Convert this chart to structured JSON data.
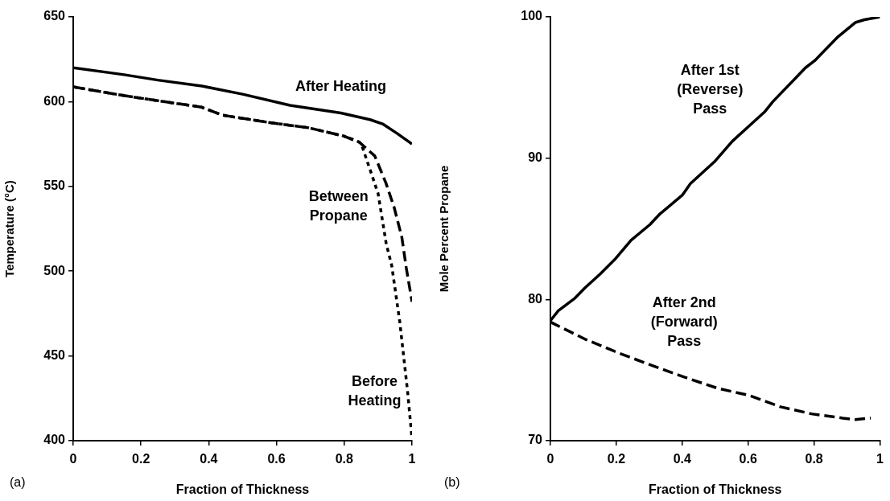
{
  "chart_data": [
    {
      "type": "line",
      "xlabel": "Fraction of Thickness",
      "ylabel": "Temperature (°C)",
      "xlim": [
        0,
        1
      ],
      "ylim": [
        400,
        650
      ],
      "xticks": [
        0,
        0.2,
        0.4,
        0.6,
        0.8,
        1
      ],
      "yticks": [
        400,
        450,
        500,
        550,
        600,
        650
      ],
      "grid": false,
      "legend": false,
      "marker": "none",
      "series": [
        {
          "color": "#000000",
          "line_style": "solid",
          "x": [
            0,
            0.15,
            0.25,
            0.38,
            0.5,
            0.64,
            0.79,
            0.876,
            0.915,
            0.955,
            1
          ],
          "values": [
            620,
            615.9,
            612.7,
            609.2,
            604.4,
            597.8,
            593.3,
            589.4,
            586.7,
            581.4,
            575
          ]
        },
        {
          "color": "#000000",
          "line_style": "dashed",
          "x": [
            0,
            0.149,
            0.251,
            0.378,
            0.441,
            0.575,
            0.694,
            0.797,
            0.844,
            0.89,
            0.923,
            0.947,
            0.97,
            0.983,
            1
          ],
          "values": [
            608.7,
            603.6,
            600.5,
            596.8,
            592,
            587.8,
            584.6,
            579.8,
            576.2,
            568,
            552,
            537.8,
            520,
            502,
            482
          ]
        },
        {
          "color": "#000000",
          "line_style": "dotted",
          "x": [
            0,
            0.149,
            0.251,
            0.378,
            0.441,
            0.575,
            0.694,
            0.797,
            0.844,
            0.852,
            0.876,
            0.9,
            0.924,
            0.94,
            0.964,
            0.987,
            1
          ],
          "values": [
            608.7,
            603.6,
            600.5,
            596.8,
            592,
            587.8,
            584.6,
            579.8,
            576.2,
            574,
            560,
            545.7,
            516,
            503.5,
            470,
            429,
            401
          ]
        }
      ],
      "annotations": [
        {
          "text": "After Heating",
          "x": 0.79,
          "y": 593.3
        },
        {
          "text": "Between\nPropane",
          "x": 0.947,
          "y": 537.8
        },
        {
          "text": "Before\nHeating",
          "x": 0.987,
          "y": 429
        },
        "(a)"
      ]
    },
    {
      "type": "line",
      "xlabel": "Fraction of Thickness",
      "ylabel": "Mole Percent Propane",
      "xlim": [
        0,
        1
      ],
      "ylim": [
        70,
        100
      ],
      "xticks": [
        0,
        0.2,
        0.4,
        0.6,
        0.8,
        1
      ],
      "yticks": [
        70,
        80,
        90,
        100
      ],
      "grid": false,
      "legend": false,
      "marker": "none",
      "series": [
        {
          "color": "#000000",
          "line_style": "solid",
          "x": [
            0,
            0.024,
            0.075,
            0.104,
            0.151,
            0.198,
            0.245,
            0.302,
            0.33,
            0.401,
            0.425,
            0.5,
            0.552,
            0.604,
            0.651,
            0.675,
            0.774,
            0.802,
            0.873,
            0.925,
            0.953,
            1
          ],
          "values": [
            78.5,
            79.2,
            80.1,
            80.8,
            81.8,
            82.9,
            84.2,
            85.3,
            86,
            87.4,
            88.2,
            89.8,
            91.2,
            92.3,
            93.3,
            94,
            96.4,
            96.9,
            98.6,
            99.6,
            99.8,
            100
          ]
        },
        {
          "color": "#000000",
          "line_style": "dashed",
          "x": [
            0,
            0.104,
            0.208,
            0.311,
            0.406,
            0.509,
            0.604,
            0.698,
            0.792,
            0.887,
            0.925,
            0.972
          ],
          "values": [
            78.4,
            77.2,
            76.2,
            75.3,
            74.5,
            73.7,
            73.2,
            72.4,
            71.9,
            71.6,
            71.5,
            71.6
          ]
        }
      ],
      "annotations": [
        {
          "text": "After 1st\n(Reverse)\nPass",
          "x": 0.604,
          "y": 92.3
        },
        {
          "text": "After 2nd\n(Forward)\nPass",
          "x": 0.406,
          "y": 74.5
        },
        "(b)"
      ]
    }
  ]
}
